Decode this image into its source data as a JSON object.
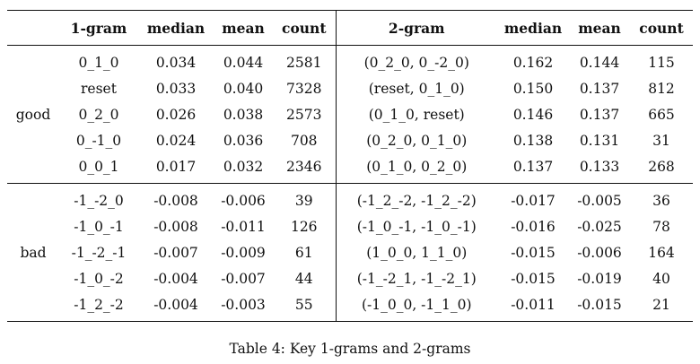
{
  "table": {
    "headers": {
      "group": "",
      "one_gram": "1-gram",
      "median1": "median",
      "mean1": "mean",
      "count1": "count",
      "two_gram": "2-gram",
      "median2": "median",
      "mean2": "mean",
      "count2": "count"
    },
    "groups": [
      {
        "label": "good",
        "rows": [
          {
            "g1": "0_1_0",
            "med1": "0.034",
            "mean1": "0.044",
            "cnt1": "2581",
            "g2": "(0_2_0, 0_-2_0)",
            "med2": "0.162",
            "mean2": "0.144",
            "cnt2": "115"
          },
          {
            "g1": "reset",
            "med1": "0.033",
            "mean1": "0.040",
            "cnt1": "7328",
            "g2": "(reset, 0_1_0)",
            "med2": "0.150",
            "mean2": "0.137",
            "cnt2": "812"
          },
          {
            "g1": "0_2_0",
            "med1": "0.026",
            "mean1": "0.038",
            "cnt1": "2573",
            "g2": "(0_1_0, reset)",
            "med2": "0.146",
            "mean2": "0.137",
            "cnt2": "665"
          },
          {
            "g1": "0_-1_0",
            "med1": "0.024",
            "mean1": "0.036",
            "cnt1": "708",
            "g2": "(0_2_0, 0_1_0)",
            "med2": "0.138",
            "mean2": "0.131",
            "cnt2": "31"
          },
          {
            "g1": "0_0_1",
            "med1": "0.017",
            "mean1": "0.032",
            "cnt1": "2346",
            "g2": "(0_1_0, 0_2_0)",
            "med2": "0.137",
            "mean2": "0.133",
            "cnt2": "268"
          }
        ]
      },
      {
        "label": "bad",
        "rows": [
          {
            "g1": "-1_-2_0",
            "med1": "-0.008",
            "mean1": "-0.006",
            "cnt1": "39",
            "g2": "(-1_2_-2, -1_2_-2)",
            "med2": "-0.017",
            "mean2": "-0.005",
            "cnt2": "36"
          },
          {
            "g1": "-1_0_-1",
            "med1": "-0.008",
            "mean1": "-0.011",
            "cnt1": "126",
            "g2": "(-1_0_-1, -1_0_-1)",
            "med2": "-0.016",
            "mean2": "-0.025",
            "cnt2": "78"
          },
          {
            "g1": "-1_-2_-1",
            "med1": "-0.007",
            "mean1": "-0.009",
            "cnt1": "61",
            "g2": "(1_0_0, 1_1_0)",
            "med2": "-0.015",
            "mean2": "-0.006",
            "cnt2": "164"
          },
          {
            "g1": "-1_0_-2",
            "med1": "-0.004",
            "mean1": "-0.007",
            "cnt1": "44",
            "g2": "(-1_-2_1, -1_-2_1)",
            "med2": "-0.015",
            "mean2": "-0.019",
            "cnt2": "40"
          },
          {
            "g1": "-1_2_-2",
            "med1": "-0.004",
            "mean1": "-0.003",
            "cnt1": "55",
            "g2": "(-1_0_0, -1_1_0)",
            "med2": "-0.011",
            "mean2": "-0.015",
            "cnt2": "21"
          }
        ]
      }
    ]
  },
  "caption": "Table 4: Key 1-grams and 2-grams"
}
